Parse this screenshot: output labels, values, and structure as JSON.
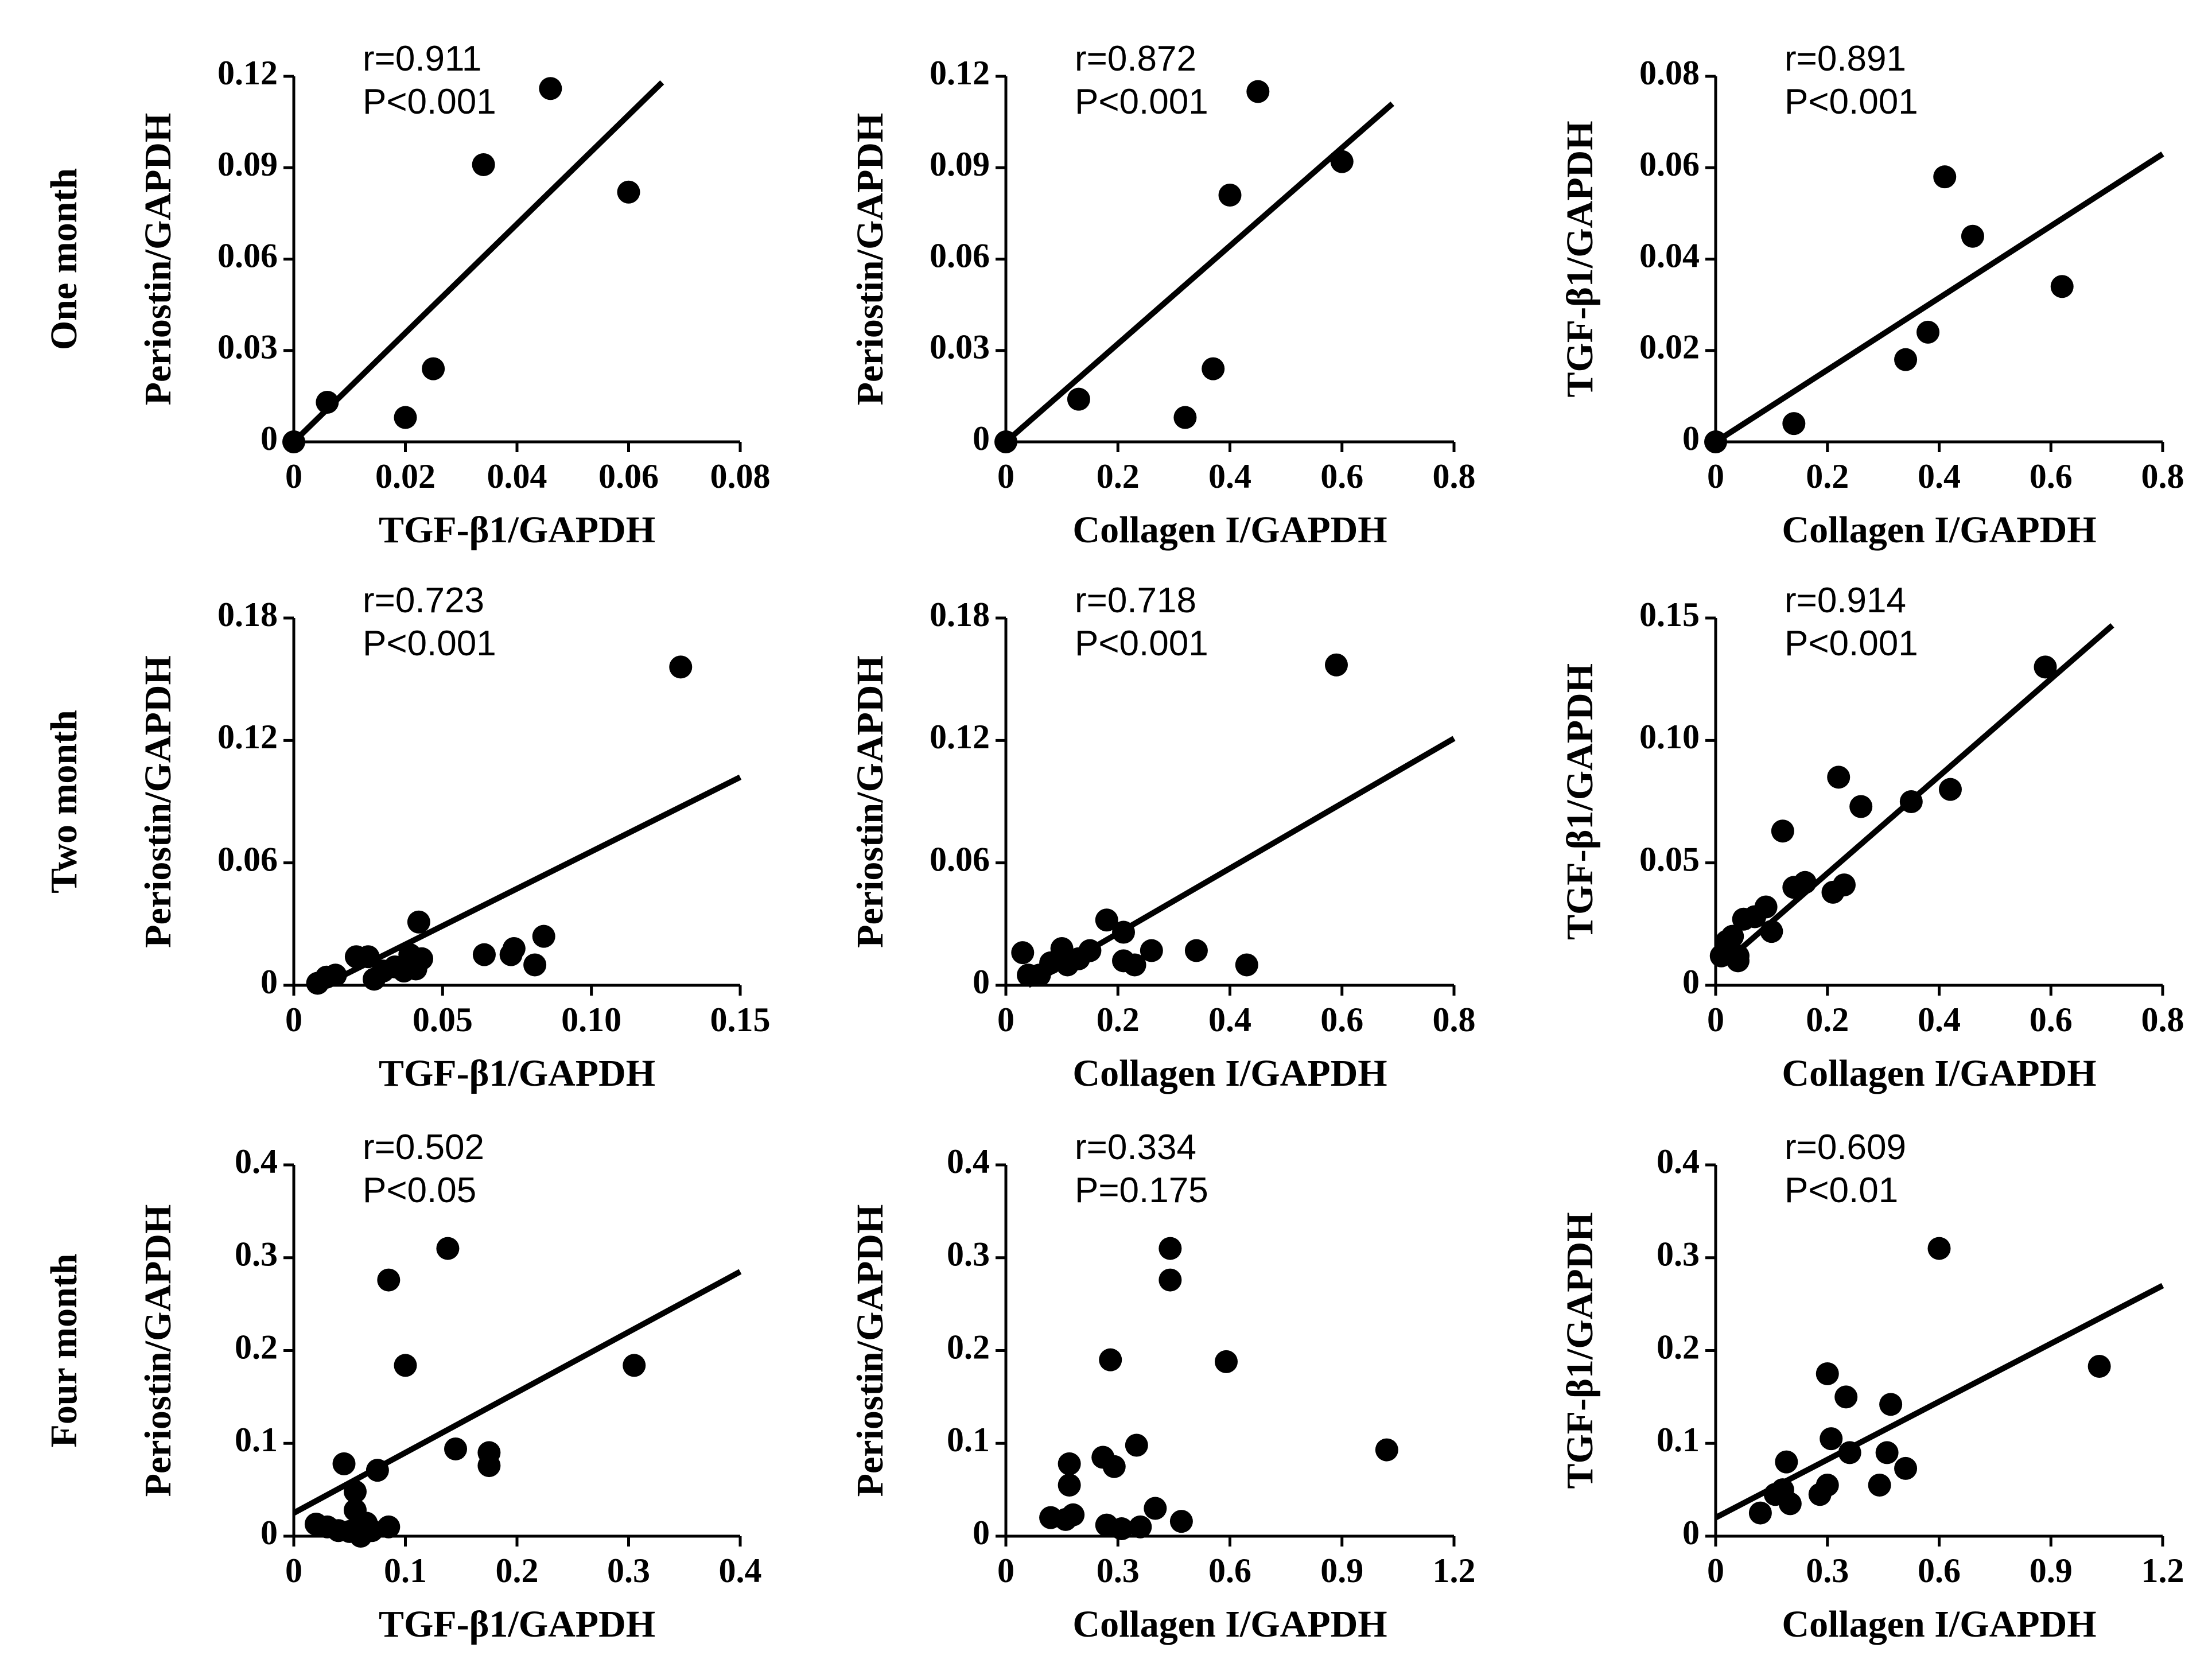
{
  "row_labels": [
    "One month",
    "Two month",
    "Four month"
  ],
  "chart_data": [
    {
      "type": "scatter",
      "row": 0,
      "col": 0,
      "xlabel": "TGF-β1/GAPDH",
      "ylabel": "Periostin/GAPDH",
      "stat1": "r=0.911",
      "stat2": "P<0.001",
      "xlim": [
        0,
        0.08
      ],
      "ylim": [
        0,
        0.12
      ],
      "xticks": [
        "0",
        "0.02",
        "0.04",
        "0.06",
        "0.08"
      ],
      "yticks": [
        "0",
        "0.03",
        "0.06",
        "0.09",
        "0.12"
      ],
      "points": [
        [
          0,
          0
        ],
        [
          0.006,
          0.013
        ],
        [
          0.02,
          0.008
        ],
        [
          0.025,
          0.024
        ],
        [
          0.034,
          0.091
        ],
        [
          0.046,
          0.116
        ],
        [
          0.06,
          0.082
        ]
      ],
      "fit": [
        [
          0,
          0
        ],
        [
          0.066,
          0.118
        ]
      ]
    },
    {
      "type": "scatter",
      "row": 0,
      "col": 1,
      "xlabel": "Collagen I/GAPDH",
      "ylabel": "Periostin/GAPDH",
      "stat1": "r=0.872",
      "stat2": "P<0.001",
      "xlim": [
        0,
        0.8
      ],
      "ylim": [
        0,
        0.12
      ],
      "xticks": [
        "0",
        "0.2",
        "0.4",
        "0.6",
        "0.8"
      ],
      "yticks": [
        "0",
        "0.03",
        "0.06",
        "0.09",
        "0.12"
      ],
      "points": [
        [
          0,
          0
        ],
        [
          0.13,
          0.014
        ],
        [
          0.32,
          0.008
        ],
        [
          0.37,
          0.024
        ],
        [
          0.4,
          0.081
        ],
        [
          0.45,
          0.115
        ],
        [
          0.6,
          0.092
        ]
      ],
      "fit": [
        [
          0,
          0
        ],
        [
          0.69,
          0.111
        ]
      ]
    },
    {
      "type": "scatter",
      "row": 0,
      "col": 2,
      "xlabel": "Collagen I/GAPDH",
      "ylabel": "TGF-β1/GAPDH",
      "stat1": "r=0.891",
      "stat2": "P<0.001",
      "xlim": [
        0,
        0.8
      ],
      "ylim": [
        0,
        0.08
      ],
      "xticks": [
        "0",
        "0.2",
        "0.4",
        "0.6",
        "0.8"
      ],
      "yticks": [
        "0",
        "0.02",
        "0.04",
        "0.06",
        "0.08"
      ],
      "points": [
        [
          0,
          0
        ],
        [
          0.14,
          0.004
        ],
        [
          0.34,
          0.018
        ],
        [
          0.38,
          0.024
        ],
        [
          0.41,
          0.058
        ],
        [
          0.46,
          0.045
        ],
        [
          0.62,
          0.034
        ]
      ],
      "fit": [
        [
          0,
          0
        ],
        [
          0.8,
          0.063
        ]
      ]
    },
    {
      "type": "scatter",
      "row": 1,
      "col": 0,
      "xlabel": "TGF-β1/GAPDH",
      "ylabel": "Periostin/GAPDH",
      "stat1": "r=0.723",
      "stat2": "P<0.001",
      "xlim": [
        0,
        0.15
      ],
      "ylim": [
        0,
        0.18
      ],
      "xticks": [
        "0",
        "0.05",
        "0.10",
        "0.15"
      ],
      "yticks": [
        "0",
        "0.06",
        "0.12",
        "0.18"
      ],
      "points": [
        [
          0.008,
          0.001
        ],
        [
          0.011,
          0.004
        ],
        [
          0.014,
          0.005
        ],
        [
          0.021,
          0.014
        ],
        [
          0.025,
          0.014
        ],
        [
          0.027,
          0.003
        ],
        [
          0.03,
          0.007
        ],
        [
          0.034,
          0.009
        ],
        [
          0.037,
          0.007
        ],
        [
          0.039,
          0.015
        ],
        [
          0.041,
          0.008
        ],
        [
          0.043,
          0.013
        ],
        [
          0.042,
          0.031
        ],
        [
          0.064,
          0.015
        ],
        [
          0.073,
          0.015
        ],
        [
          0.074,
          0.018
        ],
        [
          0.081,
          0.01
        ],
        [
          0.084,
          0.024
        ],
        [
          0.13,
          0.156
        ]
      ],
      "fit": [
        [
          0.01,
          0
        ],
        [
          0.15,
          0.102
        ]
      ]
    },
    {
      "type": "scatter",
      "row": 1,
      "col": 1,
      "xlabel": "Collagen I/GAPDH",
      "ylabel": "Periostin/GAPDH",
      "stat1": "r=0.718",
      "stat2": "P<0.001",
      "xlim": [
        0,
        0.8
      ],
      "ylim": [
        0,
        0.18
      ],
      "xticks": [
        "0",
        "0.2",
        "0.4",
        "0.6",
        "0.8"
      ],
      "yticks": [
        "0",
        "0.06",
        "0.12",
        "0.18"
      ],
      "points": [
        [
          0.03,
          0.016
        ],
        [
          0.04,
          0.005
        ],
        [
          0.06,
          0.005
        ],
        [
          0.08,
          0.011
        ],
        [
          0.1,
          0.018
        ],
        [
          0.11,
          0.01
        ],
        [
          0.13,
          0.013
        ],
        [
          0.15,
          0.017
        ],
        [
          0.18,
          0.032
        ],
        [
          0.21,
          0.026
        ],
        [
          0.21,
          0.012
        ],
        [
          0.23,
          0.01
        ],
        [
          0.26,
          0.017
        ],
        [
          0.34,
          0.017
        ],
        [
          0.43,
          0.01
        ],
        [
          0.59,
          0.157
        ]
      ],
      "fit": [
        [
          0.04,
          0
        ],
        [
          0.8,
          0.121
        ]
      ]
    },
    {
      "type": "scatter",
      "row": 1,
      "col": 2,
      "xlabel": "Collagen I/GAPDH",
      "ylabel": "TGF-β1/GAPDH",
      "stat1": "r=0.914",
      "stat2": "P<0.001",
      "xlim": [
        0,
        0.8
      ],
      "ylim": [
        0,
        0.15
      ],
      "xticks": [
        "0",
        "0.2",
        "0.4",
        "0.6",
        "0.8"
      ],
      "yticks": [
        "0",
        "0.05",
        "0.10",
        "0.15"
      ],
      "points": [
        [
          0.01,
          0.012
        ],
        [
          0.02,
          0.018
        ],
        [
          0.03,
          0.02
        ],
        [
          0.04,
          0.01
        ],
        [
          0.04,
          0.012
        ],
        [
          0.05,
          0.027
        ],
        [
          0.07,
          0.028
        ],
        [
          0.09,
          0.032
        ],
        [
          0.1,
          0.022
        ],
        [
          0.12,
          0.063
        ],
        [
          0.14,
          0.04
        ],
        [
          0.16,
          0.042
        ],
        [
          0.21,
          0.038
        ],
        [
          0.22,
          0.085
        ],
        [
          0.23,
          0.041
        ],
        [
          0.26,
          0.073
        ],
        [
          0.35,
          0.075
        ],
        [
          0.42,
          0.08
        ],
        [
          0.59,
          0.13
        ]
      ],
      "fit": [
        [
          0.02,
          0.01
        ],
        [
          0.71,
          0.147
        ]
      ]
    },
    {
      "type": "scatter",
      "row": 2,
      "col": 0,
      "xlabel": "TGF-β1/GAPDH",
      "ylabel": "Periostin/GAPDH",
      "stat1": "r=0.502",
      "stat2": "P<0.05",
      "xlim": [
        0,
        0.4
      ],
      "ylim": [
        0,
        0.4
      ],
      "xticks": [
        "0",
        "0.1",
        "0.2",
        "0.3",
        "0.4"
      ],
      "yticks": [
        "0",
        "0.1",
        "0.2",
        "0.3",
        "0.4"
      ],
      "points": [
        [
          0.02,
          0.013
        ],
        [
          0.03,
          0.01
        ],
        [
          0.04,
          0.006
        ],
        [
          0.045,
          0.078
        ],
        [
          0.05,
          0.005
        ],
        [
          0.055,
          0.048
        ],
        [
          0.055,
          0.028
        ],
        [
          0.06,
          0.0
        ],
        [
          0.065,
          0.014
        ],
        [
          0.07,
          0.006
        ],
        [
          0.075,
          0.071
        ],
        [
          0.085,
          0.01
        ],
        [
          0.085,
          0.276
        ],
        [
          0.1,
          0.184
        ],
        [
          0.138,
          0.31
        ],
        [
          0.145,
          0.094
        ],
        [
          0.175,
          0.09
        ],
        [
          0.175,
          0.076
        ],
        [
          0.305,
          0.184
        ]
      ],
      "fit": [
        [
          0,
          0.025
        ],
        [
          0.4,
          0.285
        ]
      ]
    },
    {
      "type": "scatter",
      "row": 2,
      "col": 1,
      "xlabel": "Collagen I/GAPDH",
      "ylabel": "Periostin/GAPDH",
      "stat1": "r=0.334",
      "stat2": "P=0.175",
      "xlim": [
        0,
        1.2
      ],
      "ylim": [
        0,
        0.4
      ],
      "xticks": [
        "0",
        "0.3",
        "0.6",
        "0.9",
        "1.2"
      ],
      "yticks": [
        "0",
        "0.1",
        "0.2",
        "0.3",
        "0.4"
      ],
      "points": [
        [
          0.12,
          0.02
        ],
        [
          0.16,
          0.018
        ],
        [
          0.17,
          0.055
        ],
        [
          0.17,
          0.078
        ],
        [
          0.18,
          0.023
        ],
        [
          0.26,
          0.085
        ],
        [
          0.27,
          0.012
        ],
        [
          0.28,
          0.19
        ],
        [
          0.29,
          0.075
        ],
        [
          0.31,
          0.008
        ],
        [
          0.35,
          0.098
        ],
        [
          0.36,
          0.01
        ],
        [
          0.4,
          0.03
        ],
        [
          0.44,
          0.31
        ],
        [
          0.44,
          0.276
        ],
        [
          0.47,
          0.016
        ],
        [
          0.59,
          0.188
        ],
        [
          1.02,
          0.093
        ]
      ],
      "fit": []
    },
    {
      "type": "scatter",
      "row": 2,
      "col": 2,
      "xlabel": "Collagen I/GAPDH",
      "ylabel": "TGF-β1/GAPDH",
      "stat1": "r=0.609",
      "stat2": "P<0.01",
      "xlim": [
        0,
        1.2
      ],
      "ylim": [
        0,
        0.4
      ],
      "xticks": [
        "0",
        "0.3",
        "0.6",
        "0.9",
        "1.2"
      ],
      "yticks": [
        "0",
        "0.1",
        "0.2",
        "0.3",
        "0.4"
      ],
      "points": [
        [
          0.12,
          0.025
        ],
        [
          0.16,
          0.045
        ],
        [
          0.18,
          0.05
        ],
        [
          0.19,
          0.08
        ],
        [
          0.2,
          0.035
        ],
        [
          0.28,
          0.045
        ],
        [
          0.3,
          0.055
        ],
        [
          0.3,
          0.175
        ],
        [
          0.31,
          0.105
        ],
        [
          0.35,
          0.15
        ],
        [
          0.36,
          0.09
        ],
        [
          0.44,
          0.055
        ],
        [
          0.46,
          0.09
        ],
        [
          0.47,
          0.142
        ],
        [
          0.51,
          0.073
        ],
        [
          0.6,
          0.31
        ],
        [
          1.03,
          0.183
        ]
      ],
      "fit": [
        [
          0,
          0.02
        ],
        [
          1.2,
          0.27
        ]
      ]
    }
  ]
}
